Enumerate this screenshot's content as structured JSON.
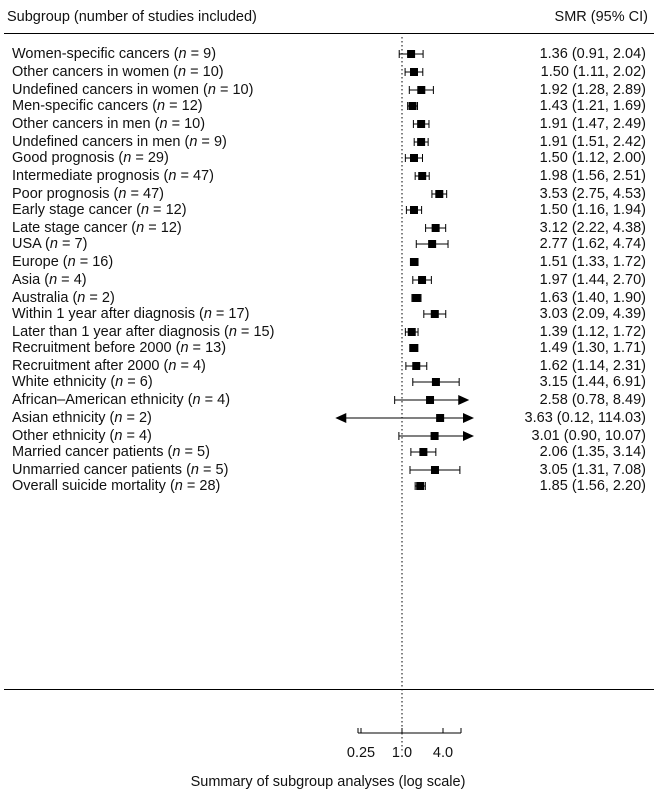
{
  "header": {
    "left": "Subgroup (number of studies included)",
    "right": "SMR (95% CI)"
  },
  "chart_data": {
    "type": "forest",
    "xlabel": "Summary of subgroup analyses (log scale)",
    "x_scale": "log",
    "reference_line": 1.0,
    "x_ticks": [
      "0.25",
      "1.0",
      "4.0"
    ],
    "rows": [
      {
        "group": 0,
        "name": "Women-specific cancers",
        "n": "9",
        "ci_text": "1.36 (0.91, 2.04)",
        "est": 1.36,
        "lo": 0.91,
        "hi": 2.04
      },
      {
        "group": 0,
        "name": "Other cancers in women",
        "n": "10",
        "ci_text": "1.50 (1.11, 2.02)",
        "est": 1.5,
        "lo": 1.11,
        "hi": 2.02
      },
      {
        "group": 0,
        "name": "Undefined cancers in women",
        "n": "10",
        "ci_text": "1.92 (1.28, 2.89)",
        "est": 1.92,
        "lo": 1.28,
        "hi": 2.89
      },
      {
        "group": 1,
        "name": "Men-specific cancers",
        "n": "12",
        "ci_text": "1.43 (1.21, 1.69)",
        "est": 1.43,
        "lo": 1.21,
        "hi": 1.69
      },
      {
        "group": 1,
        "name": "Other cancers in men",
        "n": "10",
        "ci_text": "1.91 (1.47, 2.49)",
        "est": 1.91,
        "lo": 1.47,
        "hi": 2.49
      },
      {
        "group": 1,
        "name": "Undefined cancers in men",
        "n": "9",
        "ci_text": "1.91 (1.51, 2.42)",
        "est": 1.91,
        "lo": 1.51,
        "hi": 2.42
      },
      {
        "group": 2,
        "name": "Good prognosis",
        "n": "29",
        "ci_text": "1.50 (1.12, 2.00)",
        "est": 1.5,
        "lo": 1.12,
        "hi": 2.0
      },
      {
        "group": 2,
        "name": "Intermediate prognosis",
        "n": "47",
        "ci_text": "1.98 (1.56, 2.51)",
        "est": 1.98,
        "lo": 1.56,
        "hi": 2.51
      },
      {
        "group": 2,
        "name": "Poor prognosis",
        "n": "47",
        "ci_text": "3.53 (2.75, 4.53)",
        "est": 3.53,
        "lo": 2.75,
        "hi": 4.53
      },
      {
        "group": 3,
        "name": "Early stage cancer",
        "n": "12",
        "ci_text": "1.50 (1.16, 1.94)",
        "est": 1.5,
        "lo": 1.16,
        "hi": 1.94
      },
      {
        "group": 3,
        "name": "Late stage cancer",
        "n": "12",
        "ci_text": "3.12 (2.22, 4.38)",
        "est": 3.12,
        "lo": 2.22,
        "hi": 4.38
      },
      {
        "group": 4,
        "name": "USA",
        "n": "7",
        "ci_text": "2.77 (1.62, 4.74)",
        "est": 2.77,
        "lo": 1.62,
        "hi": 4.74
      },
      {
        "group": 4,
        "name": "Europe",
        "n": "16",
        "ci_text": "1.51 (1.33, 1.72)",
        "est": 1.51,
        "lo": 1.33,
        "hi": 1.72
      },
      {
        "group": 4,
        "name": "Asia",
        "n": "4",
        "ci_text": "1.97 (1.44, 2.70)",
        "est": 1.97,
        "lo": 1.44,
        "hi": 2.7
      },
      {
        "group": 4,
        "name": "Australia",
        "n": "2",
        "ci_text": "1.63 (1.40, 1.90)",
        "est": 1.63,
        "lo": 1.4,
        "hi": 1.9
      },
      {
        "group": 5,
        "name": "Within 1 year after diagnosis",
        "n": "17",
        "ci_text": "3.03 (2.09, 4.39)",
        "est": 3.03,
        "lo": 2.09,
        "hi": 4.39
      },
      {
        "group": 5,
        "name": "Later than 1 year after diagnosis",
        "n": "15",
        "ci_text": "1.39 (1.12, 1.72)",
        "est": 1.39,
        "lo": 1.12,
        "hi": 1.72
      },
      {
        "group": 6,
        "name": "Recruitment before 2000",
        "n": "13",
        "ci_text": "1.49 (1.30, 1.71)",
        "est": 1.49,
        "lo": 1.3,
        "hi": 1.71
      },
      {
        "group": 6,
        "name": "Recruitment after 2000",
        "n": "4",
        "ci_text": "1.62 (1.14, 2.31)",
        "est": 1.62,
        "lo": 1.14,
        "hi": 2.31
      },
      {
        "group": 7,
        "name": "White ethnicity",
        "n": "6",
        "ci_text": "3.15 (1.44, 6.91)",
        "est": 3.15,
        "lo": 1.44,
        "hi": 6.91
      },
      {
        "group": 7,
        "name": "African–American ethnicity",
        "n": "4",
        "ci_text": "2.58 (0.78, 8.49)",
        "est": 2.58,
        "lo": 0.78,
        "hi": 8.49,
        "arrow_right": true
      },
      {
        "group": 7,
        "name": "Asian ethnicity",
        "n": "2",
        "ci_text": "3.63 (0.12, 114.03)",
        "est": 3.63,
        "lo": 0.12,
        "hi": 114.03,
        "arrow_left": true,
        "arrow_right": true
      },
      {
        "group": 7,
        "name": "Other ethnicity",
        "n": "4",
        "ci_text": "3.01 (0.90, 10.07)",
        "est": 3.01,
        "lo": 0.9,
        "hi": 10.07,
        "arrow_right": true
      },
      {
        "group": 8,
        "name": "Married cancer patients",
        "n": "5",
        "ci_text": "2.06 (1.35, 3.14)",
        "est": 2.06,
        "lo": 1.35,
        "hi": 3.14
      },
      {
        "group": 8,
        "name": "Unmarried cancer patients",
        "n": "5",
        "ci_text": "3.05 (1.31, 7.08)",
        "est": 3.05,
        "lo": 1.31,
        "hi": 7.08
      },
      {
        "group": 9,
        "name": "Overall suicide mortality",
        "n": "28",
        "ci_text": "1.85 (1.56, 2.20)",
        "est": 1.85,
        "lo": 1.56,
        "hi": 2.2
      }
    ]
  }
}
